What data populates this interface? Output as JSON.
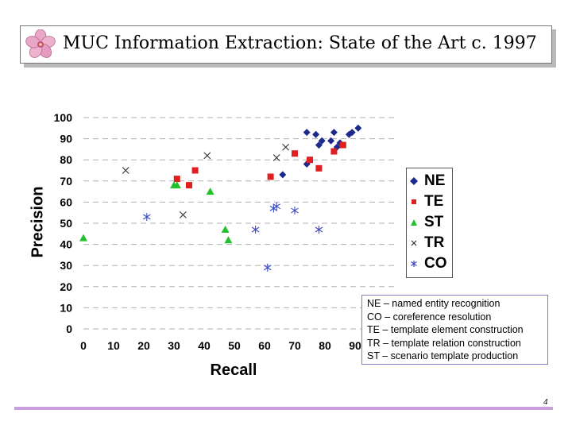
{
  "slide": {
    "title": "MUC Information Extraction: State of the Art c. 1997",
    "page_number": "4",
    "logo_icon": "flower-icon"
  },
  "notes": [
    "NE – named entity recognition",
    "CO – coreference resolution",
    "TE – template element construction",
    "TR – template relation construction",
    "ST – scenario template production"
  ],
  "chart_data": {
    "type": "scatter",
    "xlabel": "Recall",
    "ylabel": "Precision",
    "xlim": [
      0,
      100
    ],
    "ylim": [
      0,
      100
    ],
    "x_ticks": [
      "0",
      "10",
      "20",
      "30",
      "40",
      "50",
      "60",
      "70",
      "80",
      "90"
    ],
    "y_ticks": [
      "0",
      "10",
      "20",
      "30",
      "40",
      "50",
      "60",
      "70",
      "80",
      "90",
      "100"
    ],
    "grid": "horizontal dashed",
    "legend_position": "right",
    "series": [
      {
        "name": "NE",
        "marker": "diamond",
        "color": "#1c2a8c",
        "points": [
          [
            66,
            73
          ],
          [
            74,
            78
          ],
          [
            75,
            80
          ],
          [
            74,
            93
          ],
          [
            77,
            92
          ],
          [
            78,
            87
          ],
          [
            79,
            89
          ],
          [
            82,
            89
          ],
          [
            83,
            93
          ],
          [
            84,
            86
          ],
          [
            85,
            88
          ],
          [
            88,
            92
          ],
          [
            89,
            93
          ],
          [
            91,
            95
          ]
        ]
      },
      {
        "name": "TE",
        "marker": "square",
        "color": "#e02020",
        "points": [
          [
            31,
            71
          ],
          [
            35,
            68
          ],
          [
            37,
            75
          ],
          [
            62,
            72
          ],
          [
            70,
            83
          ],
          [
            75,
            80
          ],
          [
            78,
            76
          ],
          [
            83,
            84
          ],
          [
            86,
            87
          ]
        ]
      },
      {
        "name": "ST",
        "marker": "triangle",
        "color": "#22c02a",
        "points": [
          [
            0,
            43
          ],
          [
            30,
            68
          ],
          [
            31,
            68
          ],
          [
            42,
            65
          ],
          [
            47,
            47
          ],
          [
            48,
            42
          ]
        ]
      },
      {
        "name": "TR",
        "marker": "x",
        "color": "#303030",
        "points": [
          [
            14,
            75
          ],
          [
            33,
            54
          ],
          [
            41,
            82
          ],
          [
            64,
            81
          ],
          [
            67,
            86
          ]
        ]
      },
      {
        "name": "CO",
        "marker": "star",
        "color": "#3a4cc0",
        "points": [
          [
            21,
            53
          ],
          [
            57,
            47
          ],
          [
            61,
            29
          ],
          [
            63,
            57
          ],
          [
            64,
            58
          ],
          [
            70,
            56
          ],
          [
            78,
            47
          ]
        ]
      }
    ]
  }
}
